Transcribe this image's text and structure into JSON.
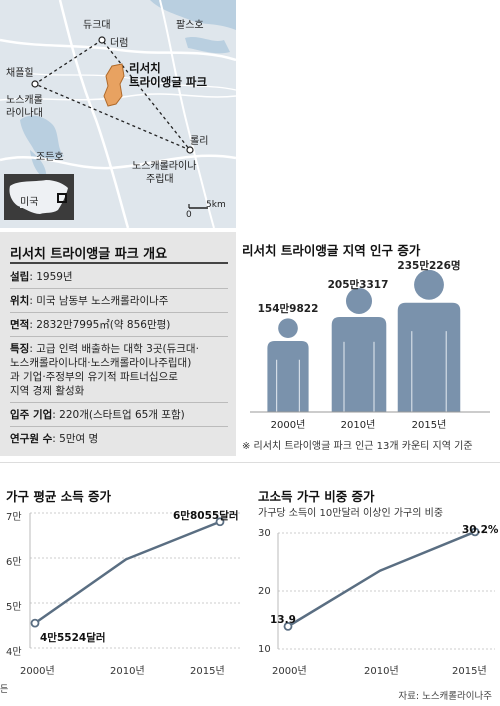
{
  "map": {
    "park_label_1": "리서치",
    "park_label_2": "트라이앵글 파크",
    "places": {
      "duke": "듀크대",
      "durham": "더럼",
      "falls": "팔스호",
      "chapel_hill": "채플힐",
      "unc_1": "노스캐롤",
      "unc_2": "라이나대",
      "jordan": "조든호",
      "raleigh": "롤리",
      "ncsu_1": "노스캐롤라이나",
      "ncsu_2": "주립대"
    },
    "inset_label": "미국",
    "scale_zero": "0",
    "scale_km": "5km"
  },
  "overview": {
    "title": "리서치 트라이앵글 파크 개요",
    "rows": [
      {
        "key": "설립",
        "value": ": 1959년"
      },
      {
        "key": "위치",
        "value": ": 미국 남동부 노스캐롤라이나주"
      },
      {
        "key": "면적",
        "value": ": 2832만7995㎡(약 856만평)"
      },
      {
        "key": "특징",
        "value": ": 고급 인력 배출하는 대학 3곳(듀크대·",
        "lines": [
          "노스캐롤라이나대·노스캐롤라이나주립대)",
          "과 기업·주정부의 유기적 파트너십으로",
          "지역 경제 활성화"
        ]
      },
      {
        "key": "입주 기업",
        "value": ": 220개(스타트업 65개 포함)"
      },
      {
        "key": "연구원 수",
        "value": ": 5만여 명"
      }
    ]
  },
  "population": {
    "title": "리서치 트라이앵글 지역 인구 증가",
    "note": "※ 리서치 트라이앵글 파크 인근 13개 카운티 지역 기준",
    "color": "#7a92ac"
  },
  "income": {
    "title": "가구 평균 소득 증가",
    "labels": {
      "start": "4만5524달러",
      "end": "6만8055달러"
    },
    "ticks": [
      "7만",
      "6만",
      "5만",
      "4만"
    ],
    "partial_label": "든"
  },
  "highincome": {
    "title": "고소득 가구 비중 증가",
    "subtitle": "가구당 소득이 10만달러 이상인 가구의 비중",
    "labels": {
      "start": "13.9",
      "end": "30.2%"
    },
    "ticks": [
      "30",
      "20",
      "10"
    ]
  },
  "source": "자료: 노스캐롤라이나주",
  "chart_data": [
    {
      "type": "bar",
      "title": "리서치 트라이앵글 지역 인구 증가",
      "categories": [
        "2000년",
        "2010년",
        "2015년"
      ],
      "values": [
        1549822,
        2053317,
        2352226
      ],
      "value_labels": [
        "154만9822",
        "205만3317",
        "235만226명"
      ]
    },
    {
      "type": "line",
      "title": "가구 평균 소득 증가",
      "x": [
        "2000년",
        "2010년",
        "2015년"
      ],
      "values": [
        45524,
        59700,
        68055
      ],
      "ylim": [
        40000,
        70000
      ],
      "yticks": [
        40000,
        50000,
        60000,
        70000
      ],
      "line_color": "#5a6e82"
    },
    {
      "type": "line",
      "title": "고소득 가구 비중 증가",
      "x": [
        "2000년",
        "2010년",
        "2015년"
      ],
      "values": [
        13.9,
        23.5,
        30.2
      ],
      "ylim": [
        10,
        30
      ],
      "yticks": [
        10,
        20,
        30
      ],
      "line_color": "#5a6e82"
    }
  ]
}
